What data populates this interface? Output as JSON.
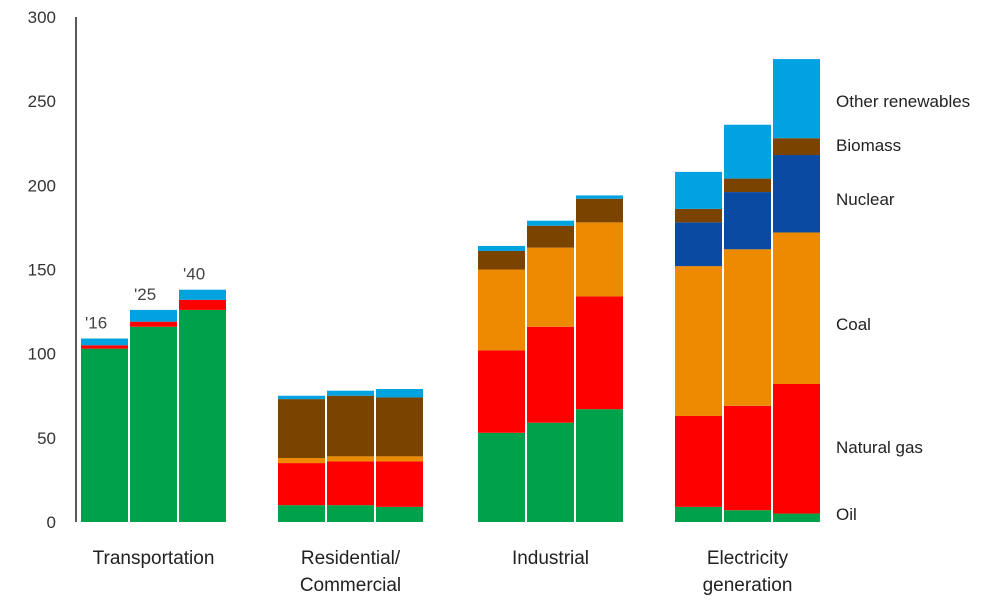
{
  "chart_data": {
    "type": "bar",
    "stacked": true,
    "title": "",
    "xlabel": "",
    "ylabel": "",
    "ylim": [
      0,
      300
    ],
    "yticks": [
      0,
      50,
      100,
      150,
      200,
      250,
      300
    ],
    "grid": false,
    "legend_position": "right",
    "year_labels": [
      "'16",
      "'25",
      "'40"
    ],
    "categories": [
      {
        "label_lines": [
          "Transportation"
        ]
      },
      {
        "label_lines": [
          "Residential/",
          "Commercial"
        ]
      },
      {
        "label_lines": [
          "Industrial"
        ]
      },
      {
        "label_lines": [
          "Electricity",
          "generation"
        ]
      }
    ],
    "series": [
      {
        "name": "Oil",
        "color": "#00a14b",
        "values": [
          [
            103,
            116,
            126
          ],
          [
            10,
            10,
            9
          ],
          [
            53,
            59,
            67
          ],
          [
            9,
            7,
            5
          ]
        ]
      },
      {
        "name": "Natural gas",
        "color": "#ff0000",
        "values": [
          [
            2,
            3,
            6
          ],
          [
            25,
            26,
            27
          ],
          [
            49,
            57,
            67
          ],
          [
            54,
            62,
            77
          ]
        ]
      },
      {
        "name": "Coal",
        "color": "#ee8a00",
        "values": [
          [
            0,
            0,
            0
          ],
          [
            3,
            3,
            3
          ],
          [
            48,
            47,
            44
          ],
          [
            89,
            93,
            90
          ]
        ]
      },
      {
        "name": "Nuclear",
        "color": "#0b4aa2",
        "values": [
          [
            0,
            0,
            0
          ],
          [
            0,
            0,
            0
          ],
          [
            0,
            0,
            0
          ],
          [
            26,
            34,
            46
          ]
        ]
      },
      {
        "name": "Biomass",
        "color": "#7a4300",
        "values": [
          [
            0,
            0,
            0
          ],
          [
            35,
            36,
            35
          ],
          [
            11,
            13,
            14
          ],
          [
            8,
            8,
            10
          ]
        ]
      },
      {
        "name": "Other renewables",
        "color": "#00a3e0",
        "values": [
          [
            4,
            7,
            6
          ],
          [
            2,
            3,
            5
          ],
          [
            3,
            3,
            2
          ],
          [
            22,
            32,
            47
          ]
        ]
      }
    ]
  }
}
